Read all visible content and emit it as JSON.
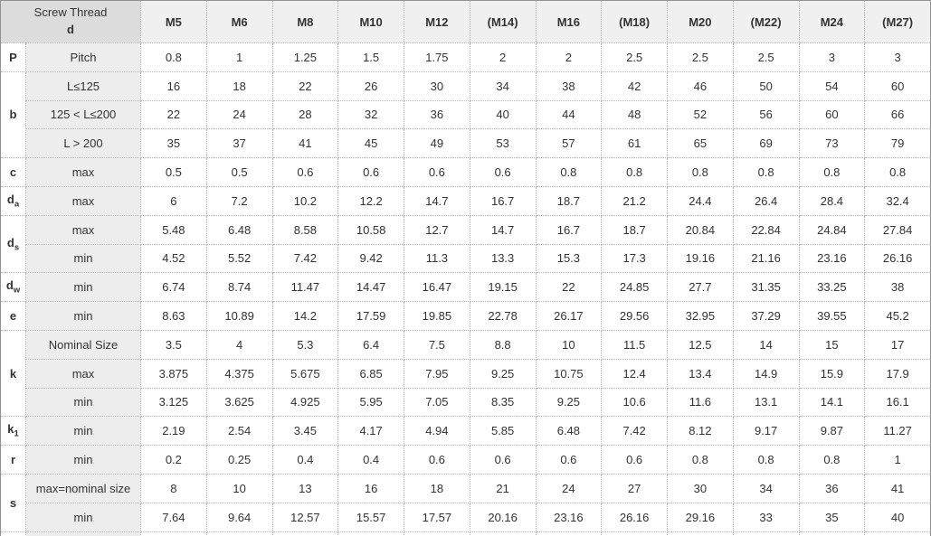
{
  "table": {
    "corner_header": {
      "line1": "Screw Thread",
      "line2": "d"
    },
    "columns": [
      "M5",
      "M6",
      "M8",
      "M10",
      "M12",
      "(M14)",
      "M16",
      "(M18)",
      "M20",
      "(M22)",
      "M24",
      "(M27)"
    ],
    "groups": [
      {
        "param": "P",
        "param_sub": "",
        "rows": [
          {
            "label": "Pitch",
            "values": [
              "0.8",
              "1",
              "1.25",
              "1.5",
              "1.75",
              "2",
              "2",
              "2.5",
              "2.5",
              "2.5",
              "3",
              "3"
            ]
          }
        ]
      },
      {
        "param": "b",
        "param_sub": "",
        "rows": [
          {
            "label": "L≤125",
            "values": [
              "16",
              "18",
              "22",
              "26",
              "30",
              "34",
              "38",
              "42",
              "46",
              "50",
              "54",
              "60"
            ]
          },
          {
            "label": "125 < L≤200",
            "values": [
              "22",
              "24",
              "28",
              "32",
              "36",
              "40",
              "44",
              "48",
              "52",
              "56",
              "60",
              "66"
            ]
          },
          {
            "label": "L > 200",
            "values": [
              "35",
              "37",
              "41",
              "45",
              "49",
              "53",
              "57",
              "61",
              "65",
              "69",
              "73",
              "79"
            ]
          }
        ]
      },
      {
        "param": "c",
        "param_sub": "",
        "rows": [
          {
            "label": "max",
            "values": [
              "0.5",
              "0.5",
              "0.6",
              "0.6",
              "0.6",
              "0.6",
              "0.8",
              "0.8",
              "0.8",
              "0.8",
              "0.8",
              "0.8"
            ]
          }
        ]
      },
      {
        "param": "d",
        "param_sub": "a",
        "rows": [
          {
            "label": "max",
            "values": [
              "6",
              "7.2",
              "10.2",
              "12.2",
              "14.7",
              "16.7",
              "18.7",
              "21.2",
              "24.4",
              "26.4",
              "28.4",
              "32.4"
            ]
          }
        ]
      },
      {
        "param": "d",
        "param_sub": "s",
        "rows": [
          {
            "label": "max",
            "values": [
              "5.48",
              "6.48",
              "8.58",
              "10.58",
              "12.7",
              "14.7",
              "16.7",
              "18.7",
              "20.84",
              "22.84",
              "24.84",
              "27.84"
            ]
          },
          {
            "label": "min",
            "values": [
              "4.52",
              "5.52",
              "7.42",
              "9.42",
              "11.3",
              "13.3",
              "15.3",
              "17.3",
              "19.16",
              "21.16",
              "23.16",
              "26.16"
            ]
          }
        ]
      },
      {
        "param": "d",
        "param_sub": "w",
        "rows": [
          {
            "label": "min",
            "values": [
              "6.74",
              "8.74",
              "11.47",
              "14.47",
              "16.47",
              "19.15",
              "22",
              "24.85",
              "27.7",
              "31.35",
              "33.25",
              "38"
            ]
          }
        ]
      },
      {
        "param": "e",
        "param_sub": "",
        "rows": [
          {
            "label": "min",
            "values": [
              "8.63",
              "10.89",
              "14.2",
              "17.59",
              "19.85",
              "22.78",
              "26.17",
              "29.56",
              "32.95",
              "37.29",
              "39.55",
              "45.2"
            ]
          }
        ]
      },
      {
        "param": "k",
        "param_sub": "",
        "rows": [
          {
            "label": "Nominal Size",
            "values": [
              "3.5",
              "4",
              "5.3",
              "6.4",
              "7.5",
              "8.8",
              "10",
              "11.5",
              "12.5",
              "14",
              "15",
              "17"
            ]
          },
          {
            "label": "max",
            "values": [
              "3.875",
              "4.375",
              "5.675",
              "6.85",
              "7.95",
              "9.25",
              "10.75",
              "12.4",
              "13.4",
              "14.9",
              "15.9",
              "17.9"
            ]
          },
          {
            "label": "min",
            "values": [
              "3.125",
              "3.625",
              "4.925",
              "5.95",
              "7.05",
              "8.35",
              "9.25",
              "10.6",
              "11.6",
              "13.1",
              "14.1",
              "16.1"
            ]
          }
        ]
      },
      {
        "param": "k",
        "param_sub": "1",
        "rows": [
          {
            "label": "min",
            "values": [
              "2.19",
              "2.54",
              "3.45",
              "4.17",
              "4.94",
              "5.85",
              "6.48",
              "7.42",
              "8.12",
              "9.17",
              "9.87",
              "11.27"
            ]
          }
        ]
      },
      {
        "param": "r",
        "param_sub": "",
        "rows": [
          {
            "label": "min",
            "values": [
              "0.2",
              "0.25",
              "0.4",
              "0.4",
              "0.6",
              "0.6",
              "0.6",
              "0.6",
              "0.8",
              "0.8",
              "0.8",
              "1"
            ]
          }
        ]
      },
      {
        "param": "s",
        "param_sub": "",
        "rows": [
          {
            "label": "max=nominal size",
            "values": [
              "8",
              "10",
              "13",
              "16",
              "18",
              "21",
              "24",
              "27",
              "30",
              "34",
              "36",
              "41"
            ]
          },
          {
            "label": "min",
            "values": [
              "7.64",
              "9.64",
              "12.57",
              "15.57",
              "17.57",
              "20.16",
              "23.16",
              "26.16",
              "29.16",
              "33",
              "35",
              "40"
            ]
          }
        ]
      }
    ],
    "colors": {
      "header_text_blue": "#0070c0",
      "corner_bg": "#dcdcdc",
      "m_header_bg": "#f0f0f0",
      "sublabel_bg": "#ededed",
      "inner_border": "#b5b5b5",
      "outer_border": "#919191",
      "text": "#333333"
    }
  }
}
